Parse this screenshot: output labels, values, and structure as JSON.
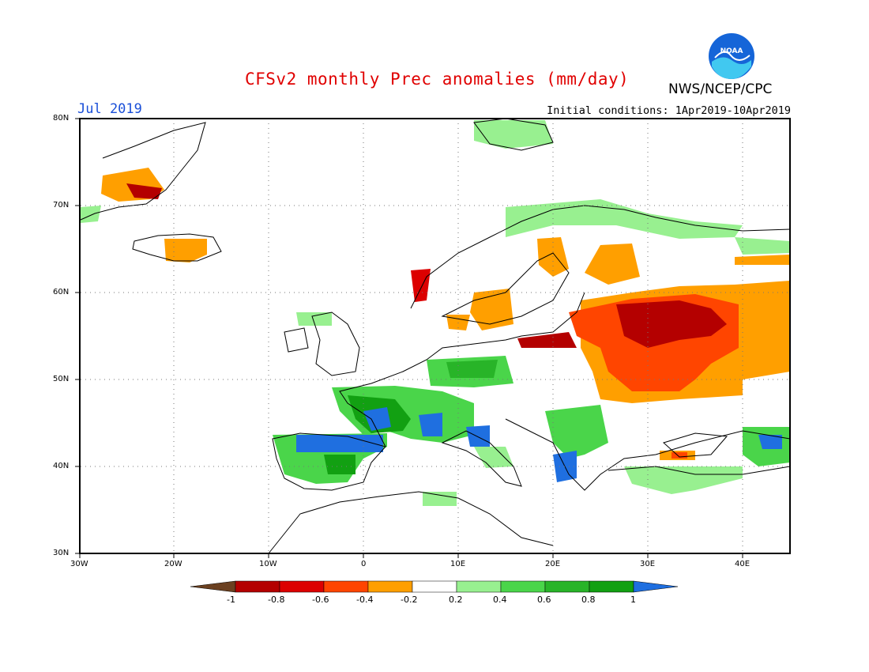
{
  "title": "CFSv2 monthly Prec anomalies (mm/day)",
  "month": "Jul 2019",
  "initial_conditions": "Initial conditions: 1Apr2019-10Apr2019",
  "agency": "NWS/NCEP/CPC",
  "logo_text": "NOAA",
  "lat_labels": [
    "80N",
    "70N",
    "60N",
    "50N",
    "40N",
    "30N"
  ],
  "lon_labels": [
    "30W",
    "20W",
    "10W",
    "0",
    "10E",
    "20E",
    "30E",
    "40E"
  ],
  "colorbar": {
    "labels": [
      "-1",
      "-0.8",
      "-0.6",
      "-0.4",
      "-0.2",
      "0.2",
      "0.4",
      "0.6",
      "0.8",
      "1"
    ],
    "colors": [
      "#6b4020",
      "#b40000",
      "#dc0000",
      "#ff4500",
      "#ff9f00",
      "#ffffff",
      "#98f090",
      "#4ad54a",
      "#28b428",
      "#12a012",
      "#1f6fe0"
    ]
  },
  "colors": {
    "dry_strong": "#b40000",
    "dry_mid": "#ff4500",
    "dry_weak": "#ff9f00",
    "wet_weak": "#98f090",
    "wet_mid": "#4ad54a",
    "wet_strong": "#12a012",
    "wet_max": "#1f6fe0"
  }
}
